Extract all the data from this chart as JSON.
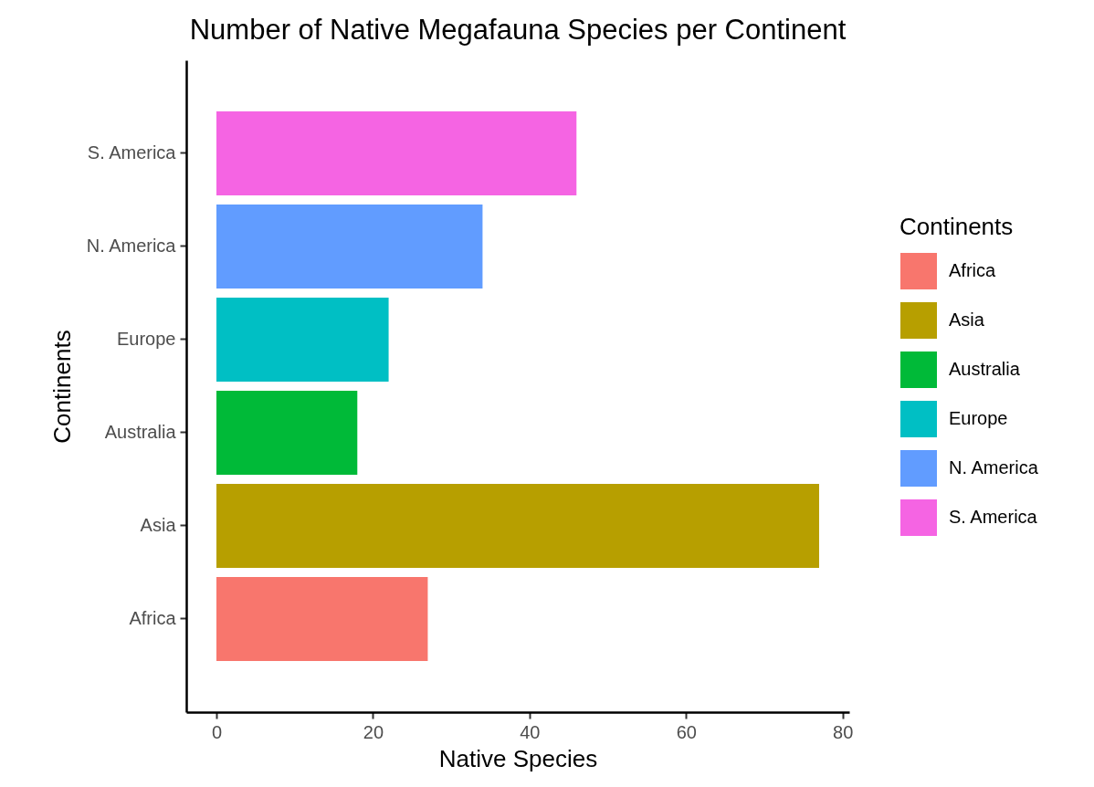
{
  "chart_data": {
    "type": "bar",
    "orientation": "horizontal",
    "title": "Number of Native Megafauna Species per Continent",
    "xlabel": "Native Species",
    "ylabel": "Continents",
    "legend_title": "Continents",
    "legend": "right",
    "categories": [
      "S. America",
      "N. America",
      "Europe",
      "Australia",
      "Asia",
      "Africa"
    ],
    "series": [
      {
        "name": "Africa",
        "color": "#f8766d",
        "values": [
          null,
          null,
          null,
          null,
          null,
          27
        ]
      },
      {
        "name": "Asia",
        "color": "#b79f00",
        "values": [
          null,
          null,
          null,
          null,
          77,
          null
        ]
      },
      {
        "name": "Australia",
        "color": "#00ba38",
        "values": [
          null,
          null,
          null,
          18,
          null,
          null
        ]
      },
      {
        "name": "Europe",
        "color": "#00bfc4",
        "values": [
          null,
          null,
          22,
          null,
          null,
          null
        ]
      },
      {
        "name": "N. America",
        "color": "#619cff",
        "values": [
          null,
          34,
          null,
          null,
          null,
          null
        ]
      },
      {
        "name": "S. America",
        "color": "#f564e3",
        "values": [
          46,
          null,
          null,
          null,
          null,
          null
        ]
      }
    ],
    "xlim": [
      -3.85,
      80.85
    ],
    "xticks": [
      0,
      20,
      40,
      60,
      80
    ]
  }
}
